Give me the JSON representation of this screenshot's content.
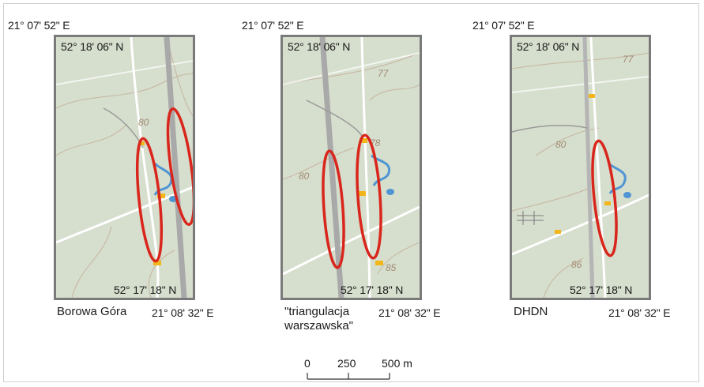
{
  "panels": [
    {
      "lon_left": "21° 07' 52\" E",
      "lat_top": "52° 18' 06\" N",
      "lat_bottom": "52° 17' 18\" N",
      "lon_right": "21° 08' 32\" E",
      "caption": "Borowa Góra",
      "caption_line2": "",
      "contour_labels": [
        "80"
      ]
    },
    {
      "lon_left": "21° 07' 52\" E",
      "lat_top": "52° 18' 06\" N",
      "lat_bottom": "52° 17' 18\" N",
      "lon_right": "21° 08' 32\" E",
      "caption": "\"triangulacja",
      "caption_line2": "warszawska\"",
      "contour_labels": [
        "77",
        "78",
        "80",
        "85"
      ]
    },
    {
      "lon_left": "21° 07' 52\" E",
      "lat_top": "52° 18' 06\" N",
      "lat_bottom": "52° 17' 18\" N",
      "lon_right": "21° 08' 32\" E",
      "caption": "DHDN",
      "caption_line2": "",
      "contour_labels": [
        "77",
        "80",
        "86"
      ]
    }
  ],
  "scale": {
    "labels": [
      "0",
      "250",
      "500 m"
    ]
  },
  "colors": {
    "map_bg": "#d6decd",
    "highlight_ellipse": "#d9261c",
    "water": "#4f95d4",
    "frame": "#7a7a7a",
    "marker": "#f2b61a"
  }
}
